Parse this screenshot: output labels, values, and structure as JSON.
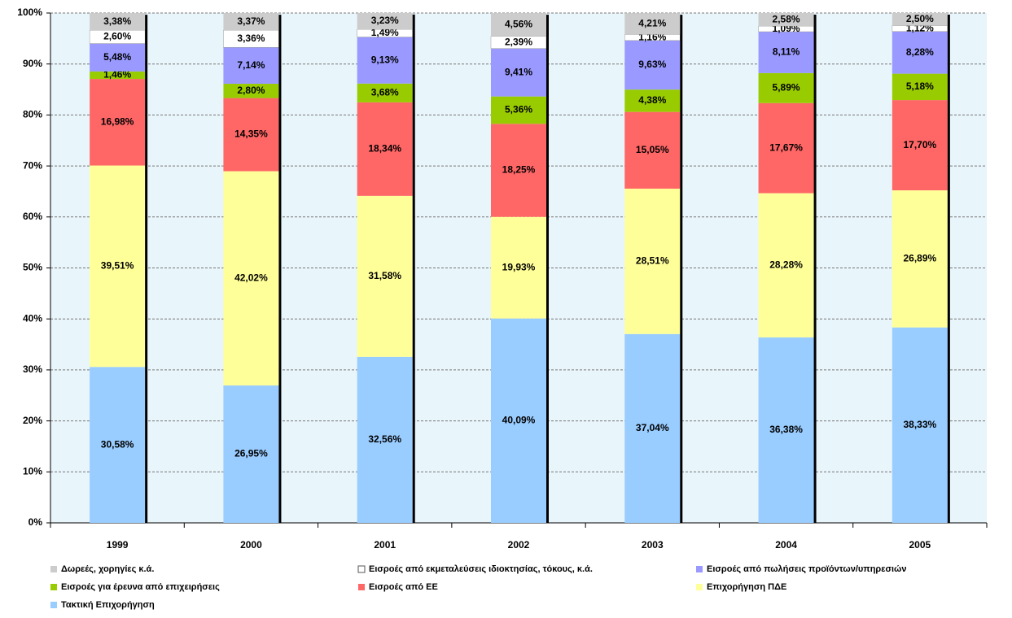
{
  "chart_data": {
    "type": "stacked-bar-100",
    "categories": [
      "1999",
      "2000",
      "2001",
      "2002",
      "2003",
      "2004",
      "2005"
    ],
    "ylim": [
      0,
      100
    ],
    "yticks": [
      {
        "value": 0,
        "label": "0%"
      },
      {
        "value": 10,
        "label": "10%"
      },
      {
        "value": 20,
        "label": "20%"
      },
      {
        "value": 30,
        "label": "30%"
      },
      {
        "value": 40,
        "label": "40%"
      },
      {
        "value": 50,
        "label": "50%"
      },
      {
        "value": 60,
        "label": "60%"
      },
      {
        "value": 70,
        "label": "70%"
      },
      {
        "value": 80,
        "label": "80%"
      },
      {
        "value": 90,
        "label": "90%"
      },
      {
        "value": 100,
        "label": "100%"
      }
    ],
    "grid": true,
    "legend_position": "bottom",
    "series": [
      {
        "name": "Δωρεές, χορηγίες κ.ά.",
        "color": "#cccccc",
        "values": [
          3.38,
          3.37,
          3.23,
          4.56,
          4.21,
          2.58,
          2.5
        ],
        "value_labels": [
          "3,38%",
          "3,37%",
          "3,23%",
          "4,56%",
          "4,21%",
          "2,58%",
          "2,50%"
        ]
      },
      {
        "name": "Εισροές από εκμεταλεύσεις ιδιοκτησίας, τόκους, κ.ά.",
        "color": "#ffffff",
        "values": [
          2.6,
          3.36,
          1.49,
          2.39,
          1.16,
          1.09,
          1.12
        ],
        "value_labels": [
          "2,60%",
          "3,36%",
          "1,49%",
          "2,39%",
          "1,16%",
          "1,09%",
          "1,12%"
        ]
      },
      {
        "name": "Εισροές από πωλήσεις προϊόντων/υπηρεσιών",
        "color": "#9999ff",
        "values": [
          5.48,
          7.14,
          9.13,
          9.41,
          9.63,
          8.11,
          8.28
        ],
        "value_labels": [
          "5,48%",
          "7,14%",
          "9,13%",
          "9,41%",
          "9,63%",
          "8,11%",
          "8,28%"
        ]
      },
      {
        "name": "Εισροές για έρευνα από επιχειρήσεις",
        "color": "#99cc00",
        "values": [
          1.46,
          2.8,
          3.68,
          5.36,
          4.38,
          5.89,
          5.18
        ],
        "value_labels": [
          "1,46%",
          "2,80%",
          "3,68%",
          "5,36%",
          "4,38%",
          "5,89%",
          "5,18%"
        ]
      },
      {
        "name": "Εισροές από ΕΕ",
        "color": "#ff6666",
        "values": [
          16.98,
          14.35,
          18.34,
          18.25,
          15.05,
          17.67,
          17.7
        ],
        "value_labels": [
          "16,98%",
          "14,35%",
          "18,34%",
          "18,25%",
          "15,05%",
          "17,67%",
          "17,70%"
        ]
      },
      {
        "name": "Επιχορήγηση ΠΔΕ",
        "color": "#ffff99",
        "values": [
          39.51,
          42.02,
          31.58,
          19.93,
          28.51,
          28.28,
          26.89
        ],
        "value_labels": [
          "39,51%",
          "42,02%",
          "31,58%",
          "19,93%",
          "28,51%",
          "28,28%",
          "26,89%"
        ]
      },
      {
        "name": "Τακτική Επιχορήγηση",
        "color": "#99ccff",
        "values": [
          30.58,
          26.95,
          32.56,
          40.09,
          37.04,
          36.38,
          38.33
        ],
        "value_labels": [
          "30,58%",
          "26,95%",
          "32,56%",
          "40,09%",
          "37,04%",
          "36,38%",
          "38,33%"
        ]
      }
    ]
  }
}
